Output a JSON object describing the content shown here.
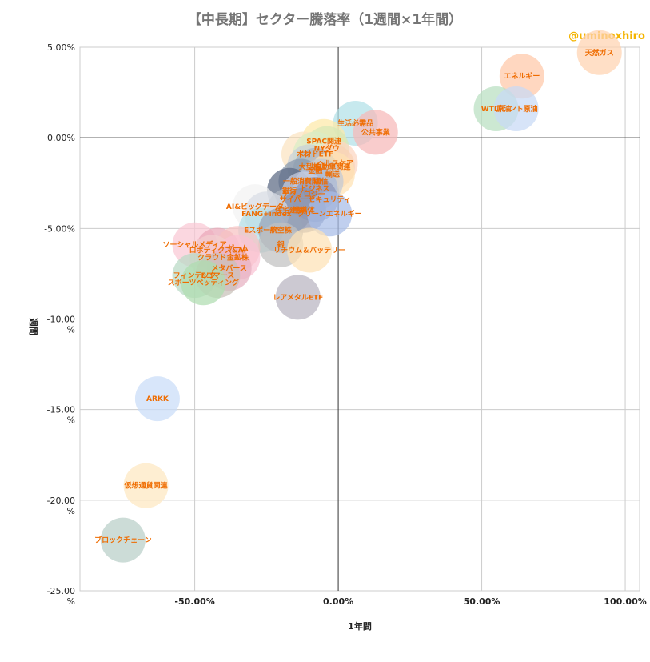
{
  "title": "【中長期】セクター騰落率（1週間×1年間）",
  "watermark": "@uminoxhiro",
  "chart_data": {
    "type": "bubble",
    "xlabel": "1年間",
    "ylabel": "週間",
    "xlim": [
      -0.9,
      1.05
    ],
    "ylim": [
      -0.25,
      0.05
    ],
    "x_ticks": [
      {
        "v": -0.5,
        "label": "-50.00%"
      },
      {
        "v": 0.0,
        "label": "0.00%"
      },
      {
        "v": 0.5,
        "label": "50.00%"
      },
      {
        "v": 1.0,
        "label": "100.00%"
      }
    ],
    "y_ticks": [
      {
        "v": 0.05,
        "label": "5.00%"
      },
      {
        "v": 0.0,
        "label": "0.00%"
      },
      {
        "v": -0.05,
        "label": "-5.00%"
      },
      {
        "v": -0.1,
        "label": "-10.00\n%"
      },
      {
        "v": -0.15,
        "label": "-15.00\n%"
      },
      {
        "v": -0.2,
        "label": "-20.00\n%"
      },
      {
        "v": -0.25,
        "label": "-25.00\n%"
      }
    ],
    "grid": true,
    "points": [
      {
        "name": "天然ガス",
        "x": 0.91,
        "y": 0.047,
        "color": "#ffd3b0"
      },
      {
        "name": "エネルギー",
        "x": 0.64,
        "y": 0.034,
        "color": "#ffc8a8"
      },
      {
        "name": "WTI原油",
        "x": 0.55,
        "y": 0.016,
        "color": "#b9dfc0"
      },
      {
        "name": "ブレント原油",
        "x": 0.62,
        "y": 0.016,
        "color": "#c7d9f5"
      },
      {
        "name": "生活必需品",
        "x": 0.06,
        "y": 0.008,
        "color": "#b2e0e8"
      },
      {
        "name": "公共事業",
        "x": 0.13,
        "y": 0.003,
        "color": "#f6b8b8"
      },
      {
        "name": "SPAC関連",
        "x": -0.05,
        "y": -0.002,
        "color": "#fde9a8"
      },
      {
        "name": "NYダウ",
        "x": -0.04,
        "y": -0.006,
        "color": "#d7e8b5"
      },
      {
        "name": "木材",
        "x": -0.12,
        "y": -0.009,
        "color": "#fbe3c0"
      },
      {
        "name": "インドETF",
        "x": -0.08,
        "y": -0.009,
        "color": "#d9edc5"
      },
      {
        "name": "ヘルスケア",
        "x": -0.01,
        "y": -0.014,
        "color": "#fcd6c0"
      },
      {
        "name": "大型株",
        "x": -0.1,
        "y": -0.016,
        "color": "#c8d0d8"
      },
      {
        "name": "自動車関連",
        "x": -0.02,
        "y": -0.016,
        "color": "#f9d2b4"
      },
      {
        "name": "金融",
        "x": -0.08,
        "y": -0.018,
        "color": "#a8b4c0"
      },
      {
        "name": "輸送",
        "x": -0.02,
        "y": -0.02,
        "color": "#ffe2b3"
      },
      {
        "name": "一般消費財",
        "x": -0.13,
        "y": -0.024,
        "color": "#8898ad"
      },
      {
        "name": "通信",
        "x": -0.06,
        "y": -0.024,
        "color": "#c1c9d6"
      },
      {
        "name": "銀行",
        "x": -0.17,
        "y": -0.029,
        "color": "#5c6a84"
      },
      {
        "name": "ビジネス",
        "x": -0.08,
        "y": -0.028,
        "color": "#a8b8d8"
      },
      {
        "name": "テクノロジー",
        "x": -0.12,
        "y": -0.031,
        "color": "#c9cfe0"
      },
      {
        "name": "サイバーセキュリティ",
        "x": -0.08,
        "y": -0.034,
        "color": "#8a94b8"
      },
      {
        "name": "AI&ビッグデータ",
        "x": -0.29,
        "y": -0.038,
        "color": "#f3f3f3"
      },
      {
        "name": "住宅建設",
        "x": -0.17,
        "y": -0.04,
        "color": "#b0b7c2"
      },
      {
        "name": "半導体",
        "x": -0.12,
        "y": -0.04,
        "color": "#8790ad"
      },
      {
        "name": "クリーンエネルギー",
        "x": -0.03,
        "y": -0.042,
        "color": "#a7bde8"
      },
      {
        "name": "FANG+index",
        "x": -0.25,
        "y": -0.042,
        "color": "#d8dde5"
      },
      {
        "name": "Eスポーツ",
        "x": -0.27,
        "y": -0.051,
        "color": "#b3dfe8"
      },
      {
        "name": "航空株",
        "x": -0.2,
        "y": -0.051,
        "color": "#98a4b8"
      },
      {
        "name": "銀",
        "x": -0.2,
        "y": -0.059,
        "color": "#c0c0c0"
      },
      {
        "name": "リチウム＆バッテリー",
        "x": -0.1,
        "y": -0.062,
        "color": "#fde2b5"
      },
      {
        "name": "ソーシャルメディア",
        "x": -0.5,
        "y": -0.059,
        "color": "#f9c8d4"
      },
      {
        "name": "ロボティクス&AI",
        "x": -0.42,
        "y": -0.062,
        "color": "#eaa8b8"
      },
      {
        "name": "ゲーム",
        "x": -0.35,
        "y": -0.061,
        "color": "#f7c2c2"
      },
      {
        "name": "クラウド",
        "x": -0.44,
        "y": -0.066,
        "color": "#f3d0d0"
      },
      {
        "name": "金鉱株",
        "x": -0.35,
        "y": -0.066,
        "color": "#f9c4d4"
      },
      {
        "name": "メタバース",
        "x": -0.38,
        "y": -0.072,
        "color": "#e6b0c0"
      },
      {
        "name": "フィンテック",
        "x": -0.5,
        "y": -0.076,
        "color": "#b9d9c5"
      },
      {
        "name": "Eコマース",
        "x": -0.42,
        "y": -0.076,
        "color": "#c8c0b8"
      },
      {
        "name": "スポーツベッティング",
        "x": -0.47,
        "y": -0.08,
        "color": "#aedcb0"
      },
      {
        "name": "レアメタルETF",
        "x": -0.14,
        "y": -0.088,
        "color": "#b8b4c0"
      },
      {
        "name": "ARKK",
        "x": -0.63,
        "y": -0.144,
        "color": "#c9dcf8"
      },
      {
        "name": "仮想通貨関連",
        "x": -0.67,
        "y": -0.192,
        "color": "#fde8c0"
      },
      {
        "name": "ブロックチェーン",
        "x": -0.75,
        "y": -0.222,
        "color": "#b9cfc8"
      }
    ]
  }
}
